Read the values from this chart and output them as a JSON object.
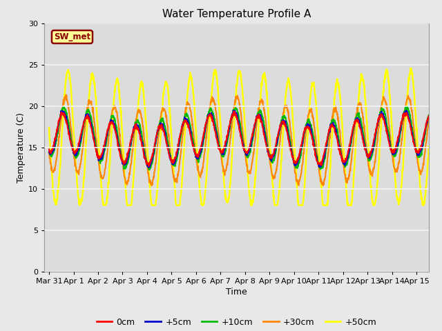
{
  "title": "Water Temperature Profile A",
  "xlabel": "Time",
  "ylabel": "Temperature (C)",
  "ylim": [
    0,
    30
  ],
  "xlim_start": -0.2,
  "xlim_end": 15.5,
  "annotation_text": "SW_met",
  "annotation_color": "#8B0000",
  "annotation_bg": "#FFFF99",
  "fig_bg": "#E8E8E8",
  "plot_bg": "#DCDCDC",
  "grid_color": "#F5F5F5",
  "tick_labels": [
    "Mar 31",
    "Apr 1",
    "Apr 2",
    "Apr 3",
    "Apr 4",
    "Apr 5",
    "Apr 6",
    "Apr 7",
    "Apr 8",
    "Apr 9",
    "Apr 10",
    "Apr 11",
    "Apr 12",
    "Apr 13",
    "Apr 14",
    "Apr 15"
  ],
  "tick_positions": [
    0,
    1,
    2,
    3,
    4,
    5,
    6,
    7,
    8,
    9,
    10,
    11,
    12,
    13,
    14,
    15
  ],
  "legend_entries": [
    "0cm",
    "+5cm",
    "+10cm",
    "+30cm",
    "+50cm"
  ],
  "legend_colors": [
    "#FF0000",
    "#0000CD",
    "#00BB00",
    "#FF8800",
    "#FFFF00"
  ],
  "yticks": [
    0,
    5,
    10,
    15,
    20,
    25,
    30
  ]
}
